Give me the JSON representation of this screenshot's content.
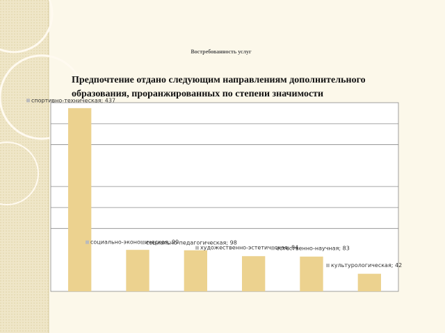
{
  "chart_data": {
    "type": "bar",
    "title": "Востребованность услуг",
    "subtitle": [
      "Предпочтение отдано следующим направлениям дополнительного",
      "образования, проранжированных по степени значимости"
    ],
    "values": [
      437,
      99,
      98,
      84,
      83,
      42
    ],
    "value_labels": [
      "спортивно-техническая; 437",
      "социально-экономическая; 99",
      "социально-педагогическая; 98",
      "художественно-эстетическая; 84",
      "естественно-научная; 83",
      "культурологическая; 42"
    ],
    "color": "#ecd28f",
    "ylim": [
      0,
      450
    ],
    "yticks": [
      150,
      200,
      250,
      350,
      400
    ],
    "grid": true
  }
}
